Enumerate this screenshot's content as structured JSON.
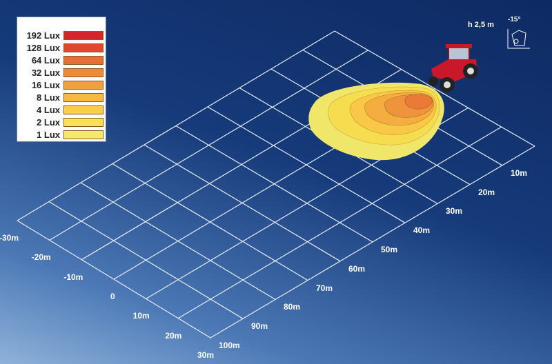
{
  "legend": {
    "items": [
      {
        "label": "192 Lux",
        "color": "#d4262a"
      },
      {
        "label": "128 Lux",
        "color": "#e0472d"
      },
      {
        "label": "64 Lux",
        "color": "#e86e33"
      },
      {
        "label": "32 Lux",
        "color": "#ee8a3a"
      },
      {
        "label": "16 Lux",
        "color": "#f2a03e"
      },
      {
        "label": "8 Lux",
        "color": "#f7b942"
      },
      {
        "label": "4 Lux",
        "color": "#f9cf47"
      },
      {
        "label": "2 Lux",
        "color": "#fbe24f"
      },
      {
        "label": "1 Lux",
        "color": "#f3e96a"
      }
    ]
  },
  "mounting": {
    "height_label": "h 2,5 m",
    "angle_label": "-15°"
  },
  "distance_axis": [
    "10m",
    "20m",
    "30m",
    "40m",
    "50m",
    "60m",
    "70m",
    "80m",
    "90m",
    "100m"
  ],
  "lateral_axis": [
    "-30m",
    "-20m",
    "-10m",
    "0",
    "10m",
    "20m",
    "30m"
  ],
  "icons": {
    "vehicle": "tractor-icon",
    "mount": "work-light-mount-icon"
  }
}
